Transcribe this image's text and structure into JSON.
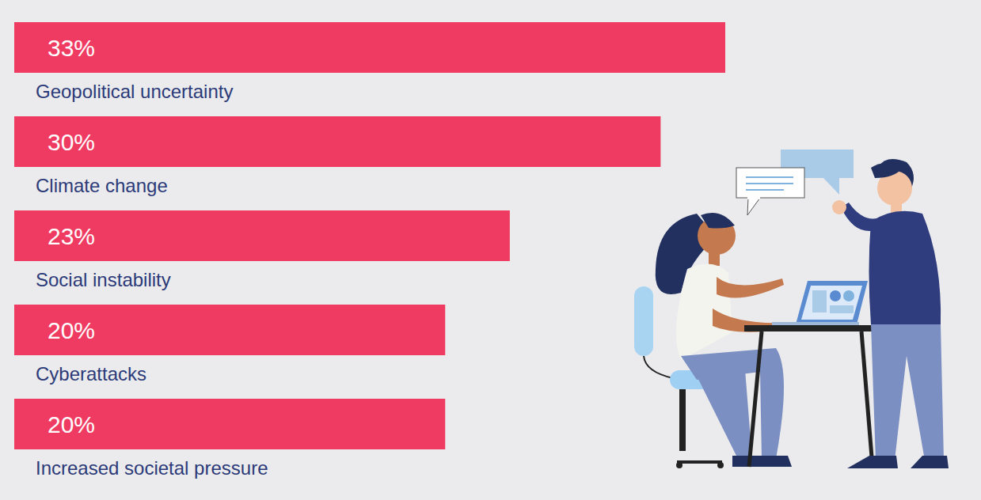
{
  "chart_data": {
    "type": "bar",
    "orientation": "horizontal",
    "categories": [
      "Geopolitical uncertainty",
      "Climate change",
      "Social instability",
      "Cyberattacks",
      "Increased societal pressure"
    ],
    "values": [
      33,
      30,
      23,
      20,
      20
    ],
    "value_labels": [
      "33%",
      "30%",
      "23%",
      "20%",
      "20%"
    ],
    "color": "#ef3b62",
    "xlim": [
      0,
      33
    ],
    "data_labels": true,
    "tick_labels": false,
    "grid": false
  }
}
